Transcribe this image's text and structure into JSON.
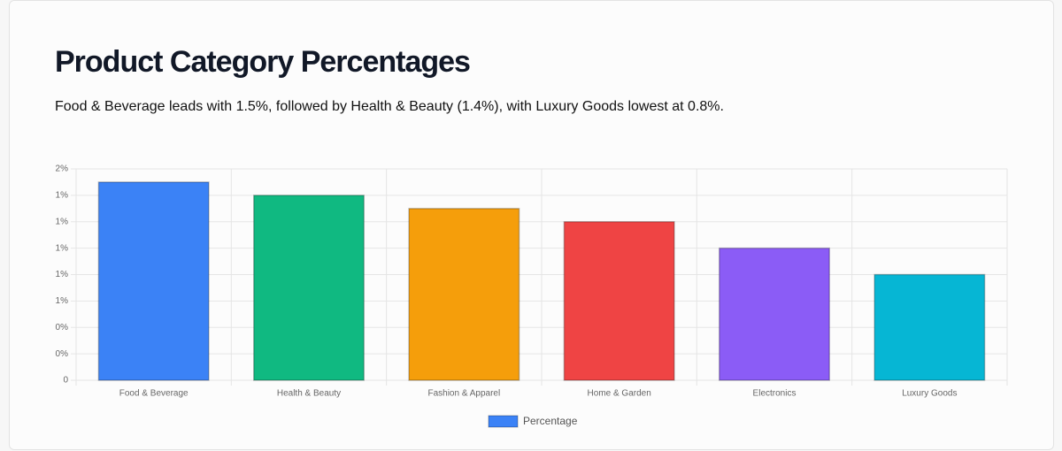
{
  "chart_data": {
    "type": "bar",
    "title": "Product Category Percentages",
    "subtitle": "Food & Beverage leads with 1.5%, followed by Health & Beauty (1.4%), with Luxury Goods lowest at 0.8%.",
    "categories": [
      "Food & Beverage",
      "Health & Beauty",
      "Fashion & Apparel",
      "Home & Garden",
      "Electronics",
      "Luxury Goods"
    ],
    "series": [
      {
        "name": "Percentage",
        "color": "#3b82f6",
        "values": [
          1.5,
          1.4,
          1.3,
          1.2,
          1.0,
          0.8
        ],
        "colors": [
          "#3b82f6",
          "#10b981",
          "#f59e0b",
          "#ef4444",
          "#8b5cf6",
          "#06b6d4"
        ]
      }
    ],
    "ylim": [
      0,
      1.6
    ],
    "yticks": [
      0,
      {
        "value": 0.2,
        "label": "0%"
      },
      {
        "value": 0.4,
        "label": "0%"
      },
      {
        "value": 0.6,
        "label": "1%"
      },
      {
        "value": 0.8,
        "label": "1%"
      },
      {
        "value": 1.0,
        "label": "1%"
      },
      {
        "value": 1.2,
        "label": "1%"
      },
      {
        "value": 1.4,
        "label": "1%"
      },
      {
        "value": 1.6,
        "label": "2%"
      }
    ],
    "grid": true,
    "legend": "bottom"
  }
}
